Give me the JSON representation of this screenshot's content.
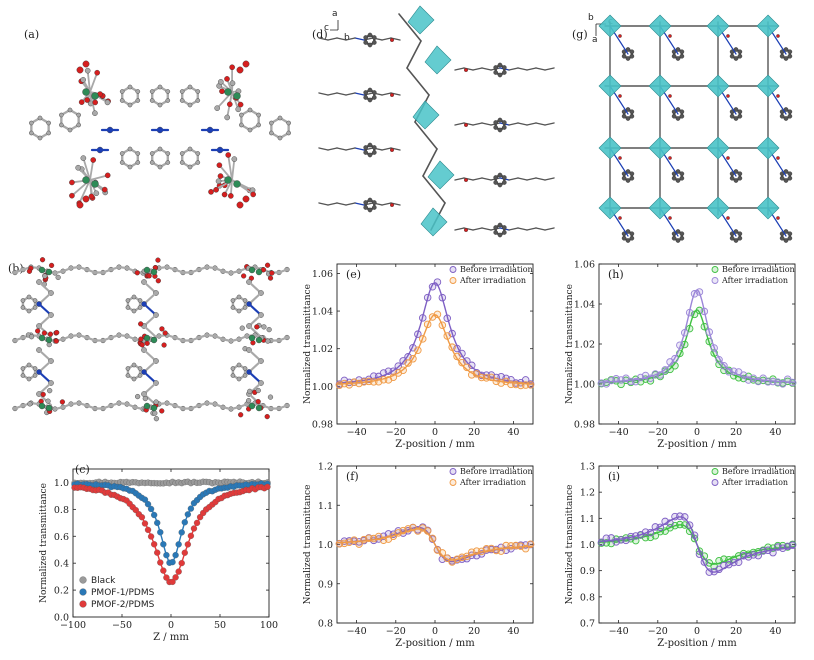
{
  "figure": {
    "panel_labels": [
      "(a)",
      "(b)",
      "(c)",
      "(d)",
      "(e)",
      "(f)",
      "(g)",
      "(h)",
      "(i)"
    ],
    "axis_letters_d": [
      "a",
      "c",
      "b"
    ],
    "axis_letters_g": [
      "b",
      "c",
      "a"
    ]
  },
  "structures": {
    "a": {
      "kind": "ball-and-stick",
      "atoms": [
        "C",
        "O",
        "N",
        "metal"
      ],
      "colors": {
        "C": "#a9a9a9",
        "O": "#d61f1f",
        "N": "#1c3fb5",
        "metal": "#2e8b57"
      }
    },
    "b": {
      "kind": "ball-and-stick layered framework",
      "colors": {
        "C": "#a9a9a9",
        "O": "#d61f1f",
        "N": "#1c3fb5",
        "metal": "#2e8b57"
      }
    },
    "d": {
      "kind": "stick chain with polyhedra",
      "colors": {
        "stick": "#555555",
        "polyhedra": "#49c3c8",
        "O": "#d61f1f",
        "N": "#1c3fb5"
      }
    },
    "g": {
      "kind": "stick grid with polyhedra",
      "colors": {
        "stick": "#555555",
        "polyhedra": "#49c3c8",
        "O": "#d61f1f",
        "N": "#1c3fb5"
      }
    }
  },
  "chart_data": [
    {
      "id": "c",
      "type": "scatter",
      "xlabel": "Z / mm",
      "ylabel": "Normalized transmittance",
      "xlim": [
        -100,
        100
      ],
      "ylim": [
        0.0,
        1.1
      ],
      "xticks": [
        -100,
        -50,
        0,
        50,
        100
      ],
      "yticks": [
        0.0,
        0.2,
        0.4,
        0.6,
        0.8,
        1.0
      ],
      "legend_position": "bottom-left",
      "series": [
        {
          "name": "Black",
          "color": "#9a9a9a",
          "fit": {
            "kind": "flat",
            "value": 1.0
          }
        },
        {
          "name": "PMOF-1/PDMS",
          "color": "#2a78b6",
          "fit": {
            "kind": "dip",
            "depth": 0.6,
            "width": 14
          }
        },
        {
          "name": "PMOF-2/PDMS",
          "color": "#e03a3a",
          "fit": {
            "kind": "dip",
            "depth": 0.74,
            "width": 22
          }
        }
      ]
    },
    {
      "id": "e",
      "type": "scatter",
      "xlabel": "Z-position / mm",
      "ylabel": "Normalized transmittance",
      "xlim": [
        -50,
        50
      ],
      "ylim": [
        0.98,
        1.065
      ],
      "xticks": [
        -40,
        -20,
        0,
        20,
        40
      ],
      "yticks": [
        0.98,
        1.0,
        1.02,
        1.04,
        1.06
      ],
      "legend_position": "top-right",
      "series": [
        {
          "name": "Before irradiation",
          "color": "#7e5fc4",
          "fit": {
            "kind": "peak",
            "height": 0.055,
            "width": 9
          }
        },
        {
          "name": "After irradiation",
          "color": "#f09a45",
          "fit": {
            "kind": "peak",
            "height": 0.038,
            "width": 9
          }
        }
      ]
    },
    {
      "id": "f",
      "type": "scatter",
      "xlabel": "Z-position / mm",
      "ylabel": "Normalized transmittance",
      "xlim": [
        -50,
        50
      ],
      "ylim": [
        0.8,
        1.2
      ],
      "xticks": [
        -40,
        -20,
        0,
        20,
        40
      ],
      "yticks": [
        0.8,
        0.9,
        1.0,
        1.1,
        1.2
      ],
      "legend_position": "top-right",
      "series": [
        {
          "name": "Before irradiation",
          "color": "#7e5fc4",
          "fit": {
            "kind": "disp",
            "amp": 0.215,
            "z0": 10
          }
        },
        {
          "name": "After irradiation",
          "color": "#f09a45",
          "fit": {
            "kind": "disp",
            "amp": 0.195,
            "z0": 10
          }
        }
      ]
    },
    {
      "id": "h",
      "type": "scatter",
      "xlabel": "Z-position / mm",
      "ylabel": "Normalized transmittance",
      "xlim": [
        -50,
        50
      ],
      "ylim": [
        0.98,
        1.06
      ],
      "xticks": [
        -40,
        -20,
        0,
        20,
        40
      ],
      "yticks": [
        0.98,
        1.0,
        1.02,
        1.04,
        1.06
      ],
      "legend_position": "top-right",
      "series": [
        {
          "name": "Before irradiation",
          "color": "#3fc042",
          "fit": {
            "kind": "peak",
            "height": 0.037,
            "width": 7
          }
        },
        {
          "name": "After irradiation",
          "color": "#9b86d8",
          "fit": {
            "kind": "peak",
            "height": 0.047,
            "width": 7
          }
        }
      ]
    },
    {
      "id": "i",
      "type": "scatter",
      "xlabel": "Z-position / mm",
      "ylabel": "Normalized transmittance",
      "xlim": [
        -50,
        50
      ],
      "ylim": [
        0.7,
        1.3
      ],
      "xticks": [
        -40,
        -20,
        0,
        20,
        40
      ],
      "yticks": [
        0.7,
        0.8,
        0.9,
        1.0,
        1.1,
        1.2,
        1.3
      ],
      "legend_position": "top-right",
      "series": [
        {
          "name": "Before irradiation",
          "color": "#3fc042",
          "fit": {
            "kind": "disp",
            "amp": 0.37,
            "z0": 10
          }
        },
        {
          "name": "After irradiation",
          "color": "#7e5fc4",
          "fit": {
            "kind": "disp",
            "amp": 0.52,
            "z0": 10
          }
        }
      ]
    }
  ]
}
